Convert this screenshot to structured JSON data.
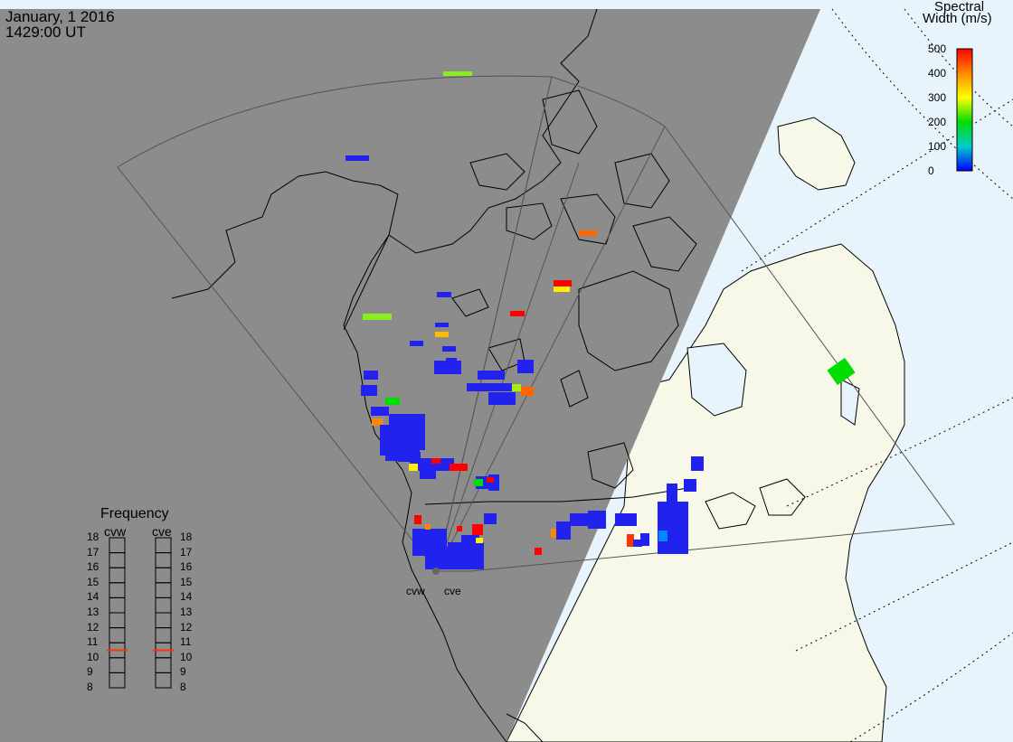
{
  "header": {
    "date": "January, 1 2016",
    "time": "1429:00 UT"
  },
  "legend": {
    "title_line1": "Spectral",
    "title_line2": "Width (m/s)",
    "ticks": [
      "500",
      "400",
      "300",
      "200",
      "100",
      "0"
    ],
    "colors": [
      "#ff0000",
      "#ff8800",
      "#ffff00",
      "#00dd00",
      "#00cccc",
      "#0000ff"
    ]
  },
  "frequency": {
    "title": "Frequency",
    "channels": [
      {
        "name": "cvw",
        "value": 10.5
      },
      {
        "name": "cve",
        "value": 10.5
      }
    ],
    "ticks": [
      "18",
      "17",
      "16",
      "15",
      "14",
      "13",
      "12",
      "11",
      "10",
      "9",
      "8"
    ],
    "marker_color": "#ff3300"
  },
  "radars": [
    {
      "name": "cvw"
    },
    {
      "name": "cve"
    }
  ],
  "colors": {
    "night": "#8c8c8c",
    "land_day": "#f8f8e8",
    "ocean_day": "#e8f4fc",
    "scatter_low": "#2222ee",
    "scatter_mid": "#88ee22"
  }
}
